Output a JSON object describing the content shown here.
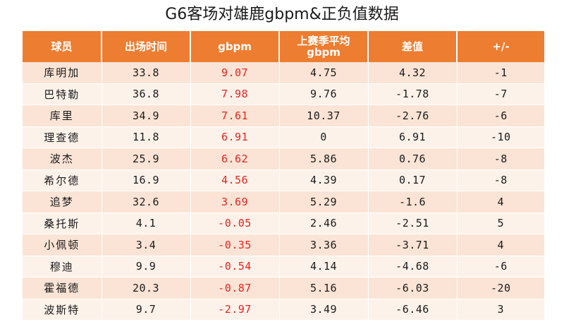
{
  "title": "G6客场对雄鹿gbpm&正负值数据",
  "colors": {
    "header_bg": "#ed7d31",
    "header_text": "#ffffff",
    "row_odd_bg": "#fbe4d5",
    "row_even_bg": "#fdf2ea",
    "gbpm_text": "#e8231f",
    "body_text": "#1a1a1a"
  },
  "table": {
    "headers": [
      "球员",
      "出场时间",
      "gbpm",
      "上赛季平均\ngbpm",
      "差值",
      "+/-"
    ],
    "rows": [
      [
        "库明加",
        "33.8",
        "9.07",
        "4.75",
        "4.32",
        "-1"
      ],
      [
        "巴特勒",
        "36.8",
        "7.98",
        "9.76",
        "-1.78",
        "-7"
      ],
      [
        "库里",
        "34.9",
        "7.61",
        "10.37",
        "-2.76",
        "-6"
      ],
      [
        "理查德",
        "11.8",
        "6.91",
        "0",
        "6.91",
        "-10"
      ],
      [
        "波杰",
        "25.9",
        "6.62",
        "5.86",
        "0.76",
        "-8"
      ],
      [
        "希尔德",
        "16.9",
        "4.56",
        "4.39",
        "0.17",
        "-8"
      ],
      [
        "追梦",
        "32.6",
        "3.69",
        "5.29",
        "-1.6",
        "4"
      ],
      [
        "桑托斯",
        "4.1",
        "-0.05",
        "2.46",
        "-2.51",
        "5"
      ],
      [
        "小佩顿",
        "3.4",
        "-0.35",
        "3.36",
        "-3.71",
        "4"
      ],
      [
        "穆迪",
        "9.9",
        "-0.54",
        "4.14",
        "-4.68",
        "-6"
      ],
      [
        "霍福德",
        "20.3",
        "-0.87",
        "5.16",
        "-6.03",
        "-20"
      ],
      [
        "波斯特",
        "9.7",
        "-2.97",
        "3.49",
        "-6.46",
        "3"
      ]
    ]
  }
}
